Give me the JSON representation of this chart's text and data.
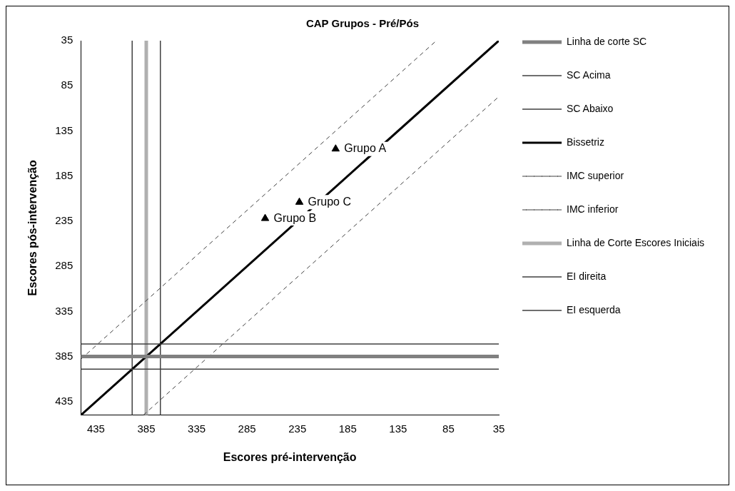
{
  "chart_data": {
    "type": "line",
    "title": "CAP Grupos - Pré/Pós",
    "xlabel": "Escores pré-intervenção",
    "ylabel": "Escores pós-intervenção",
    "xlim": [
      450,
      35
    ],
    "ylim": [
      450,
      35
    ],
    "xticks": [
      435,
      385,
      335,
      285,
      235,
      185,
      135,
      85,
      35
    ],
    "yticks": [
      35,
      85,
      135,
      185,
      235,
      285,
      335,
      385,
      435
    ],
    "grid": false,
    "legend": "right",
    "series": [
      {
        "name": "Linha de corte SC",
        "color": "#808080",
        "x": [
          450,
          35
        ],
        "values": [
          385,
          385
        ]
      },
      {
        "name": "SC Acima",
        "color": "#404040",
        "x": [
          450,
          35
        ],
        "values": [
          371,
          371
        ]
      },
      {
        "name": "SC Abaixo",
        "color": "#404040",
        "x": [
          450,
          35
        ],
        "values": [
          399,
          399
        ]
      },
      {
        "name": "Bissetriz",
        "color": "#000000",
        "x": [
          450,
          35
        ],
        "values": [
          450,
          35
        ]
      },
      {
        "name": "IMC superior",
        "color": "#404040",
        "line_style": "dashed",
        "x": [
          450,
          97
        ],
        "values": [
          388,
          35
        ]
      },
      {
        "name": "IMC inferior",
        "color": "#404040",
        "line_style": "dashed",
        "x": [
          388,
          35
        ],
        "values": [
          450,
          97
        ]
      },
      {
        "name": "Linha de Corte Escores Iniciais",
        "color": "#b0b0b0",
        "x": [
          385,
          385
        ],
        "values": [
          450,
          35
        ]
      },
      {
        "name": "EI direita",
        "color": "#404040",
        "x": [
          371,
          371
        ],
        "values": [
          450,
          35
        ]
      },
      {
        "name": "EI esquerda",
        "color": "#404040",
        "x": [
          399,
          399
        ],
        "values": [
          450,
          35
        ]
      },
      {
        "name": "Grupo A",
        "type": "scatter",
        "marker": "triangle",
        "color": "#000000",
        "x": [
          197
        ],
        "values": [
          155
        ]
      },
      {
        "name": "Grupo B",
        "type": "scatter",
        "marker": "triangle",
        "color": "#000000",
        "x": [
          267
        ],
        "values": [
          232
        ]
      },
      {
        "name": "Grupo C",
        "type": "scatter",
        "marker": "triangle",
        "color": "#000000",
        "x": [
          233
        ],
        "values": [
          214
        ]
      }
    ]
  }
}
